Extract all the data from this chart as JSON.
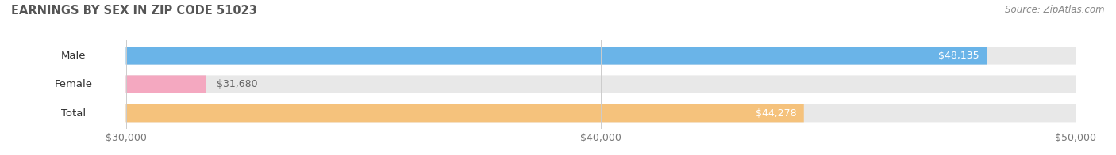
{
  "title": "EARNINGS BY SEX IN ZIP CODE 51023",
  "source": "Source: ZipAtlas.com",
  "categories": [
    "Male",
    "Female",
    "Total"
  ],
  "values": [
    48135,
    31680,
    44278
  ],
  "bar_colors": [
    "#6ab4e8",
    "#f4a8c0",
    "#f5c27c"
  ],
  "value_label_colors": [
    "#ffffff",
    "#777777",
    "#ffffff"
  ],
  "xmin": 30000,
  "xmax": 50000,
  "xticks": [
    30000,
    40000,
    50000
  ],
  "xtick_labels": [
    "$30,000",
    "$40,000",
    "$50,000"
  ],
  "background_color": "#ffffff",
  "bar_bg_color": "#e8e8e8",
  "value_labels": [
    "$48,135",
    "$31,680",
    "$44,278"
  ],
  "figwidth": 14.06,
  "figheight": 1.96,
  "dpi": 100
}
